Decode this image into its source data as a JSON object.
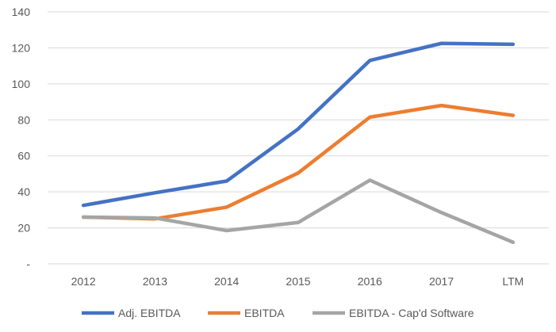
{
  "chart_data": {
    "type": "line",
    "title": "",
    "xlabel": "",
    "ylabel": "",
    "categories": [
      "2012",
      "2013",
      "2014",
      "2015",
      "2016",
      "2017",
      "LTM"
    ],
    "yticks": [
      {
        "value": 0,
        "label": "-"
      },
      {
        "value": 20,
        "label": "20"
      },
      {
        "value": 40,
        "label": "40"
      },
      {
        "value": 60,
        "label": "60"
      },
      {
        "value": 80,
        "label": "80"
      },
      {
        "value": 100,
        "label": "100"
      },
      {
        "value": 120,
        "label": "120"
      },
      {
        "value": 140,
        "label": "140"
      }
    ],
    "ylim": [
      0,
      140
    ],
    "grid": true,
    "legend_position": "bottom",
    "series": [
      {
        "name": "Adj. EBITDA",
        "color": "#4472C4",
        "values": [
          32.5,
          39.5,
          46,
          75,
          113,
          122.5,
          122
        ]
      },
      {
        "name": "EBITDA",
        "color": "#ED7D31",
        "values": [
          26,
          25,
          31.5,
          50.5,
          81.5,
          88,
          82.5
        ]
      },
      {
        "name": "EBITDA - Cap'd Software",
        "color": "#A5A5A5",
        "values": [
          26,
          25.5,
          18.5,
          23,
          46.5,
          28.5,
          12
        ]
      }
    ]
  }
}
